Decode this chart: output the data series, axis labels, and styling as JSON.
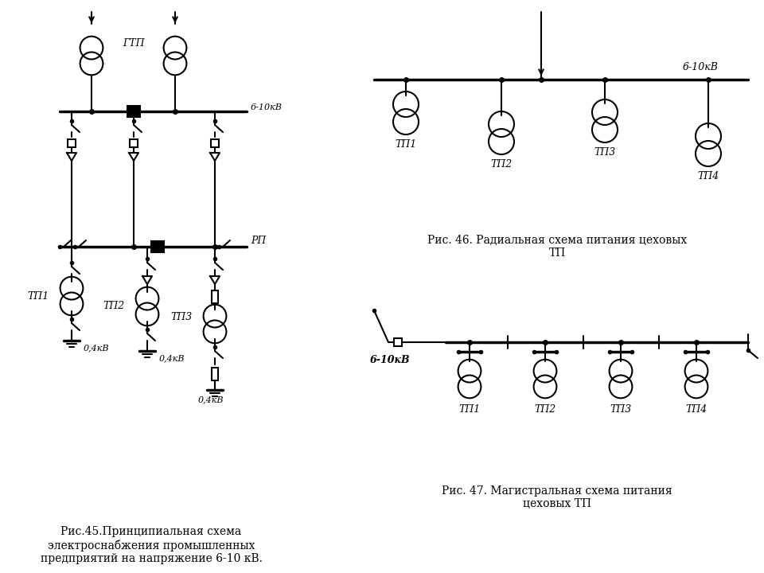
{
  "bg_color": "#ffffff",
  "fig46_caption": "Рис. 46. Радиальная схема питания цеховых\nТП",
  "fig47_caption": "Рис. 47. Магистральная схема питания\nцеховых ТП",
  "fig45_caption": "Рис.45.Принципиальная схема\nэлектроснабжения промышленных\nпредприятий на напряжение 6-10 кВ.",
  "label_610kV_fig45": "6-10кВ",
  "label_GTP": "ГТП",
  "label_RP": "РП",
  "label_TP1_fig45": "ТП1",
  "label_TP2_fig45": "ТП2",
  "label_TP3_fig45": "ТП3",
  "label_04kV_1": "0,4кВ",
  "label_04kV_2": "0,4кВ",
  "label_610kV_fig46": "6-10кВ",
  "label_TP1_fig46": "ТП1",
  "label_TP2_fig46": "ТП2",
  "label_TP3_fig46": "ТП3",
  "label_TP4_fig46": "ТП4",
  "label_610kV_fig47": "6-10кВ",
  "label_TP1_fig47": "ТП1",
  "label_TP2_fig47": "ТП2",
  "label_TP3_fig47": "ТП3",
  "label_TP4_fig47": "ТП4"
}
